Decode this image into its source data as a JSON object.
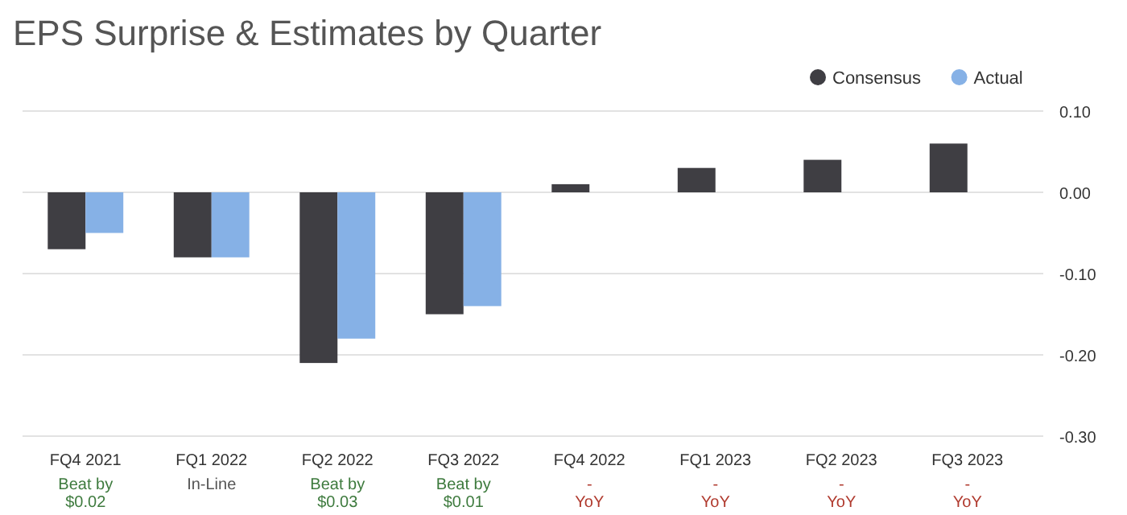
{
  "chart_data": {
    "type": "bar",
    "title": "EPS Surprise & Estimates by Quarter",
    "categories": [
      "FQ4 2021",
      "FQ1 2022",
      "FQ2 2022",
      "FQ3 2022",
      "FQ4 2022",
      "FQ1 2023",
      "FQ2 2023",
      "FQ3 2023"
    ],
    "series": [
      {
        "name": "Consensus",
        "color": "#3f3e43",
        "values": [
          -0.07,
          -0.08,
          -0.21,
          -0.15,
          0.01,
          0.03,
          0.04,
          0.06
        ]
      },
      {
        "name": "Actual",
        "color": "#86b1e6",
        "values": [
          -0.05,
          -0.08,
          -0.18,
          -0.14,
          null,
          null,
          null,
          null
        ]
      }
    ],
    "ylim": [
      -0.3,
      0.1
    ],
    "yticks": [
      {
        "value": 0.1,
        "label": "0.10"
      },
      {
        "value": 0,
        "label": "0.00"
      },
      {
        "value": -0.1,
        "label": "-0.10"
      },
      {
        "value": -0.2,
        "label": "-0.20"
      },
      {
        "value": -0.3,
        "label": "-0.30"
      }
    ],
    "grid": "y",
    "legend": "top right",
    "annotations": [
      "Beat by $0.02",
      "In-Line",
      "Beat by $0.03",
      "Beat by $0.01",
      "- YoY",
      "- YoY",
      "- YoY",
      "- YoY"
    ]
  }
}
